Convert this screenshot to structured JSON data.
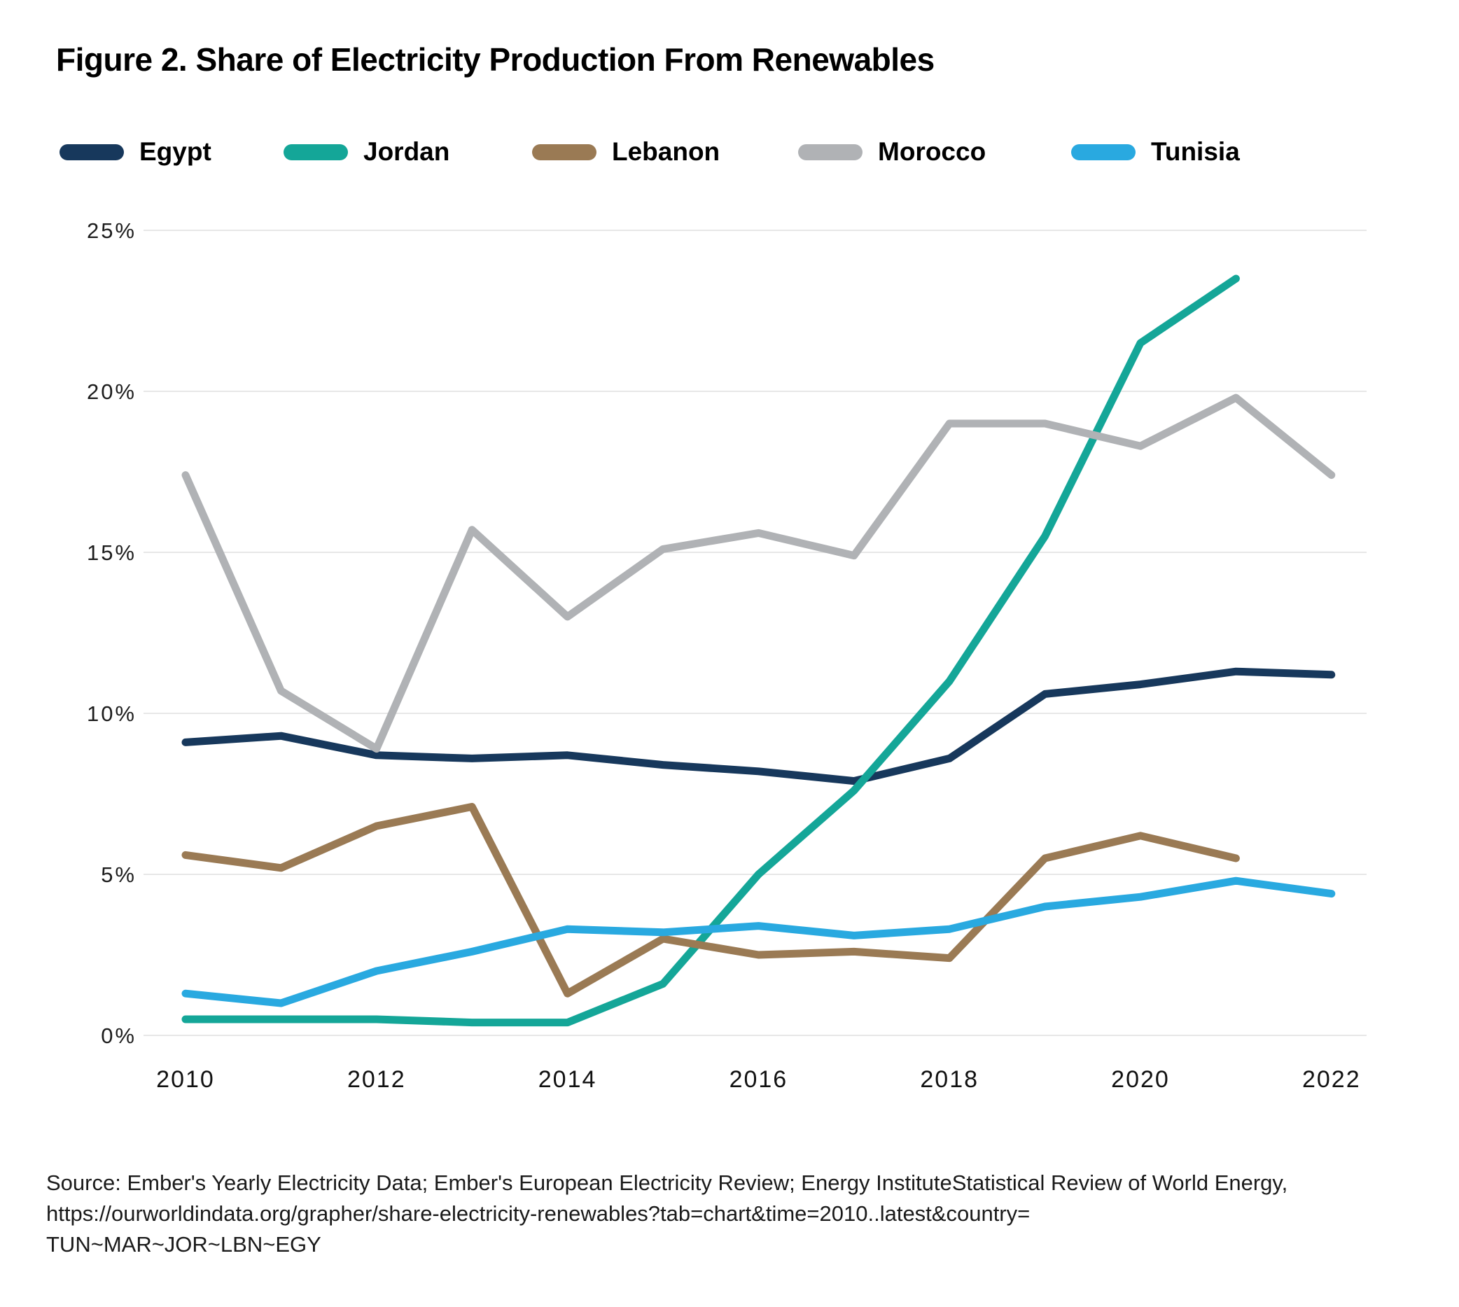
{
  "figure": {
    "title": "Figure 2. Share of Electricity Production From Renewables",
    "source_lines": [
      "Source: Ember's Yearly Electricity Data; Ember's European Electricity Review; Energy InstituteStatistical Review of World Energy,",
      "https://ourworldindata.org/grapher/share-electricity-renewables?tab=chart&time=2010..latest&country=",
      "TUN~MAR~JOR~LBN~EGY"
    ]
  },
  "chart_data": {
    "type": "line",
    "title": "Figure 2. Share of Electricity Production From Renewables",
    "xlabel": "",
    "ylabel": "",
    "xlim": [
      2010,
      2022
    ],
    "ylim": [
      0,
      25
    ],
    "grid": "horizontal",
    "legend_position": "top",
    "x_ticks": [
      2010,
      2012,
      2014,
      2016,
      2018,
      2020,
      2022
    ],
    "y_ticks": [
      {
        "value": 0,
        "label": "0%"
      },
      {
        "value": 5,
        "label": "5%"
      },
      {
        "value": 10,
        "label": "10%"
      },
      {
        "value": 15,
        "label": "15%"
      },
      {
        "value": 20,
        "label": "20%"
      },
      {
        "value": 25,
        "label": "25%"
      }
    ],
    "series": [
      {
        "name": "Egypt",
        "color": "#17385C",
        "x": [
          2010,
          2011,
          2012,
          2013,
          2014,
          2015,
          2016,
          2017,
          2018,
          2019,
          2020,
          2021,
          2022
        ],
        "values": [
          9.1,
          9.3,
          8.7,
          8.6,
          8.7,
          8.4,
          8.2,
          7.9,
          8.6,
          10.6,
          10.9,
          11.3,
          11.2
        ]
      },
      {
        "name": "Jordan",
        "color": "#14A698",
        "x": [
          2010,
          2011,
          2012,
          2013,
          2014,
          2015,
          2016,
          2017,
          2018,
          2019,
          2020,
          2021
        ],
        "values": [
          0.5,
          0.5,
          0.5,
          0.4,
          0.4,
          1.6,
          5.0,
          7.6,
          11.0,
          15.5,
          21.5,
          23.5
        ]
      },
      {
        "name": "Lebanon",
        "color": "#9A7A54",
        "x": [
          2010,
          2011,
          2012,
          2013,
          2014,
          2015,
          2016,
          2017,
          2018,
          2019,
          2020,
          2021
        ],
        "values": [
          5.6,
          5.2,
          6.5,
          7.1,
          1.3,
          3.0,
          2.5,
          2.6,
          2.4,
          5.5,
          6.2,
          5.5
        ]
      },
      {
        "name": "Morocco",
        "color": "#B0B2B5",
        "x": [
          2010,
          2011,
          2012,
          2013,
          2014,
          2015,
          2016,
          2017,
          2018,
          2019,
          2020,
          2021,
          2022
        ],
        "values": [
          17.4,
          10.7,
          8.9,
          15.7,
          13.0,
          15.1,
          15.6,
          14.9,
          19.0,
          19.0,
          18.3,
          19.8,
          17.4
        ]
      },
      {
        "name": "Tunisia",
        "color": "#29A9E0",
        "x": [
          2010,
          2011,
          2012,
          2013,
          2014,
          2015,
          2016,
          2017,
          2018,
          2019,
          2020,
          2021,
          2022
        ],
        "values": [
          1.3,
          1.0,
          2.0,
          2.6,
          3.3,
          3.2,
          3.4,
          3.1,
          3.3,
          4.0,
          4.3,
          4.8,
          4.4
        ]
      }
    ]
  }
}
